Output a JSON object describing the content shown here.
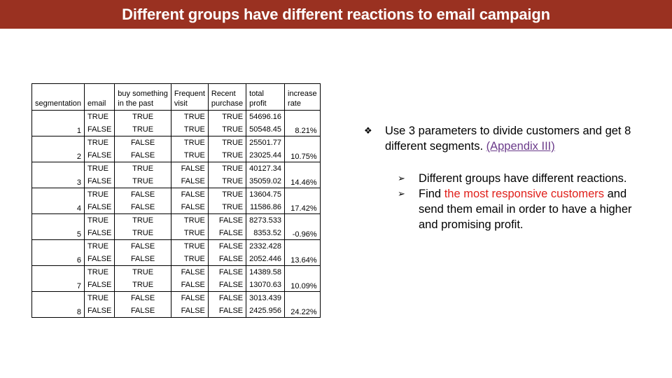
{
  "title": "Different groups have different reactions to email campaign",
  "table": {
    "headers": [
      "segmentation",
      "email",
      "buy something in the past",
      "Frequent visit",
      "Recent purchase",
      "total profit",
      "increase rate"
    ],
    "header_lines": [
      [
        "segmentation"
      ],
      [
        "email"
      ],
      [
        "buy something",
        "in the past"
      ],
      [
        "Frequent",
        "visit"
      ],
      [
        "Recent",
        "purchase"
      ],
      [
        "total",
        "profit"
      ],
      [
        "increase",
        "rate"
      ]
    ],
    "groups": [
      {
        "seg": "1",
        "rows": [
          [
            "TRUE",
            "TRUE",
            "TRUE",
            "TRUE",
            "54696.16"
          ],
          [
            "FALSE",
            "TRUE",
            "TRUE",
            "TRUE",
            "50548.45"
          ]
        ],
        "rate": "8.21%"
      },
      {
        "seg": "2",
        "rows": [
          [
            "TRUE",
            "FALSE",
            "TRUE",
            "TRUE",
            "25501.77"
          ],
          [
            "FALSE",
            "FALSE",
            "TRUE",
            "TRUE",
            "23025.44"
          ]
        ],
        "rate": "10.75%"
      },
      {
        "seg": "3",
        "rows": [
          [
            "TRUE",
            "TRUE",
            "FALSE",
            "TRUE",
            "40127.34"
          ],
          [
            "FALSE",
            "TRUE",
            "FALSE",
            "TRUE",
            "35059.02"
          ]
        ],
        "rate": "14.46%"
      },
      {
        "seg": "4",
        "rows": [
          [
            "TRUE",
            "FALSE",
            "FALSE",
            "TRUE",
            "13604.75"
          ],
          [
            "FALSE",
            "FALSE",
            "FALSE",
            "TRUE",
            "11586.86"
          ]
        ],
        "rate": "17.42%"
      },
      {
        "seg": "5",
        "rows": [
          [
            "TRUE",
            "TRUE",
            "TRUE",
            "FALSE",
            "8273.533"
          ],
          [
            "FALSE",
            "TRUE",
            "TRUE",
            "FALSE",
            "8353.52"
          ]
        ],
        "rate": "-0.96%"
      },
      {
        "seg": "6",
        "rows": [
          [
            "TRUE",
            "FALSE",
            "TRUE",
            "FALSE",
            "2332.428"
          ],
          [
            "FALSE",
            "FALSE",
            "TRUE",
            "FALSE",
            "2052.446"
          ]
        ],
        "rate": "13.64%"
      },
      {
        "seg": "7",
        "rows": [
          [
            "TRUE",
            "TRUE",
            "FALSE",
            "FALSE",
            "14389.58"
          ],
          [
            "FALSE",
            "TRUE",
            "FALSE",
            "FALSE",
            "13070.63"
          ]
        ],
        "rate": "10.09%"
      },
      {
        "seg": "8",
        "rows": [
          [
            "TRUE",
            "FALSE",
            "FALSE",
            "FALSE",
            "3013.439"
          ],
          [
            "FALSE",
            "FALSE",
            "FALSE",
            "FALSE",
            "2425.956"
          ]
        ],
        "rate": "24.22%"
      }
    ]
  },
  "bullets": {
    "main_text": "Use 3 parameters to divide customers and get 8 different segments.",
    "main_link": "(Appendix III)",
    "sub": [
      {
        "before": "Different groups have different reactions.",
        "highlight": "",
        "after": ""
      },
      {
        "before": "Find ",
        "highlight": "the most responsive customers",
        "after": " and send them email in order to have a higher and promising profit."
      }
    ]
  },
  "colors": {
    "title_bar": "#9a3121",
    "highlight": "#e0201b",
    "link": "#6b3b8a"
  },
  "icons": {
    "main_bullet": "diamond-bullet-icon",
    "sub_bullet": "arrowhead-bullet-icon"
  }
}
